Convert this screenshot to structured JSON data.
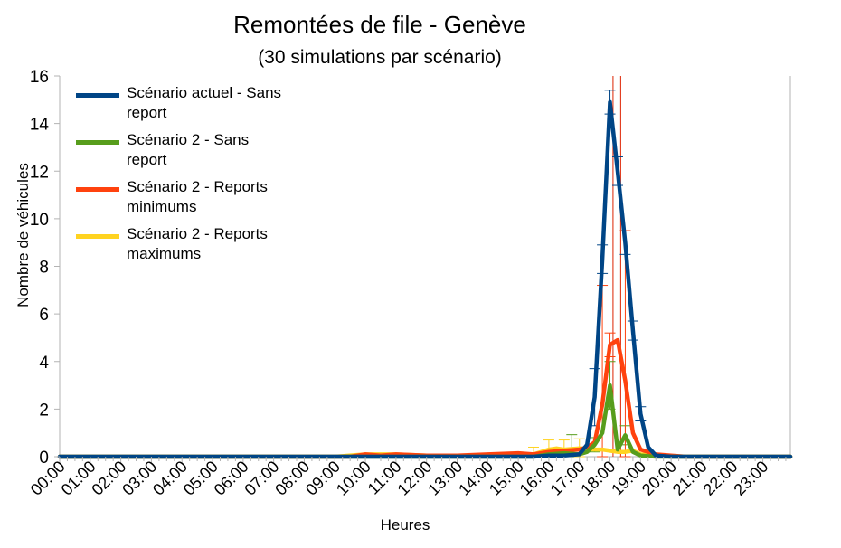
{
  "chart_data": {
    "type": "line",
    "title": "Remontées de file - Genève",
    "subtitle": "(30 simulations par scénario)",
    "xlabel": "Heures",
    "ylabel": "Nombre de véhicules",
    "ylim": [
      0,
      16
    ],
    "yticks": [
      0,
      2,
      4,
      6,
      8,
      10,
      12,
      14,
      16
    ],
    "xlim": [
      0,
      23.9
    ],
    "xticks": [
      "00:00",
      "01:00",
      "02:00",
      "03:00",
      "04:00",
      "05:00",
      "06:00",
      "07:00",
      "08:00",
      "09:00",
      "10:00",
      "11:00",
      "12:00",
      "13:00",
      "14:00",
      "15:00",
      "16:00",
      "17:00",
      "18:00",
      "19:00",
      "20:00",
      "21:00",
      "22:00",
      "23:00"
    ],
    "grid": false,
    "legend_position": "top-left",
    "reference_lines_hours": [
      18.1,
      18.35
    ],
    "reference_line_color": "#dd2200",
    "series": [
      {
        "name": "Scénario actuel - Sans report",
        "color": "#004586",
        "points": [
          [
            0,
            0
          ],
          [
            15.5,
            0
          ],
          [
            16.0,
            0.05
          ],
          [
            16.5,
            0.05
          ],
          [
            17.0,
            0.1
          ],
          [
            17.25,
            0.5
          ],
          [
            17.5,
            2.5
          ],
          [
            17.75,
            8.3
          ],
          [
            18.0,
            14.9
          ],
          [
            18.25,
            12.0
          ],
          [
            18.5,
            9.0
          ],
          [
            18.75,
            5.3
          ],
          [
            19.0,
            1.8
          ],
          [
            19.25,
            0.4
          ],
          [
            19.5,
            0.05
          ],
          [
            20.0,
            0
          ],
          [
            23.9,
            0
          ]
        ],
        "error_bars": [
          [
            17.5,
            1.2
          ],
          [
            17.75,
            0.6
          ],
          [
            18.0,
            0.5
          ],
          [
            18.25,
            0.6
          ],
          [
            18.5,
            0.5
          ],
          [
            18.75,
            0.4
          ],
          [
            19.0,
            0.3
          ]
        ]
      },
      {
        "name": "Scénario 2 - Sans report",
        "color": "#579d1c",
        "points": [
          [
            0,
            0
          ],
          [
            15.5,
            0
          ],
          [
            16.0,
            0.1
          ],
          [
            16.5,
            0.15
          ],
          [
            17.0,
            0.1
          ],
          [
            17.25,
            0.2
          ],
          [
            17.5,
            0.5
          ],
          [
            17.75,
            1.0
          ],
          [
            18.0,
            3.0
          ],
          [
            18.25,
            0.3
          ],
          [
            18.5,
            0.9
          ],
          [
            18.75,
            0.2
          ],
          [
            19.0,
            0.05
          ],
          [
            19.5,
            0
          ],
          [
            23.9,
            0
          ]
        ],
        "error_bars": [
          [
            16.75,
            0.8
          ],
          [
            17.5,
            0.3
          ],
          [
            18.0,
            1.0
          ],
          [
            18.5,
            0.4
          ]
        ]
      },
      {
        "name": "Scénario 2 - Reports minimums",
        "color": "#ff420e",
        "points": [
          [
            0,
            0
          ],
          [
            9.5,
            0
          ],
          [
            10.0,
            0.1
          ],
          [
            10.5,
            0.05
          ],
          [
            11.0,
            0.1
          ],
          [
            12.0,
            0.05
          ],
          [
            13.0,
            0.05
          ],
          [
            14.0,
            0.1
          ],
          [
            15.0,
            0.15
          ],
          [
            15.5,
            0.1
          ],
          [
            16.0,
            0.2
          ],
          [
            16.5,
            0.25
          ],
          [
            17.0,
            0.3
          ],
          [
            17.25,
            0.4
          ],
          [
            17.5,
            0.6
          ],
          [
            17.75,
            2.2
          ],
          [
            18.0,
            4.7
          ],
          [
            18.25,
            4.9
          ],
          [
            18.5,
            3.2
          ],
          [
            18.75,
            1.0
          ],
          [
            19.0,
            0.3
          ],
          [
            19.5,
            0.1
          ],
          [
            20.0,
            0.05
          ],
          [
            20.5,
            0
          ],
          [
            23.9,
            0
          ]
        ],
        "error_bars": [
          [
            17.75,
            5.0
          ],
          [
            18.5,
            6.3
          ],
          [
            18.0,
            0.5
          ]
        ]
      },
      {
        "name": "Scénario 2 - Reports maximums",
        "color": "#ffd320",
        "points": [
          [
            0,
            0
          ],
          [
            9.0,
            0
          ],
          [
            10.0,
            0.1
          ],
          [
            11.0,
            0.1
          ],
          [
            12.0,
            0.05
          ],
          [
            13.0,
            0.05
          ],
          [
            14.0,
            0.05
          ],
          [
            15.0,
            0.1
          ],
          [
            15.5,
            0.1
          ],
          [
            16.0,
            0.3
          ],
          [
            16.25,
            0.35
          ],
          [
            16.5,
            0.3
          ],
          [
            17.0,
            0.35
          ],
          [
            17.5,
            0.3
          ],
          [
            17.75,
            0.3
          ],
          [
            18.0,
            0.25
          ],
          [
            18.25,
            0.2
          ],
          [
            18.5,
            0.2
          ],
          [
            18.75,
            0.25
          ],
          [
            19.0,
            0.1
          ],
          [
            19.5,
            0.05
          ],
          [
            20.0,
            0
          ],
          [
            23.9,
            0
          ]
        ],
        "error_bars": [
          [
            15.5,
            0.3
          ],
          [
            16.0,
            0.4
          ],
          [
            16.5,
            0.4
          ],
          [
            17.0,
            0.4
          ]
        ]
      }
    ]
  }
}
